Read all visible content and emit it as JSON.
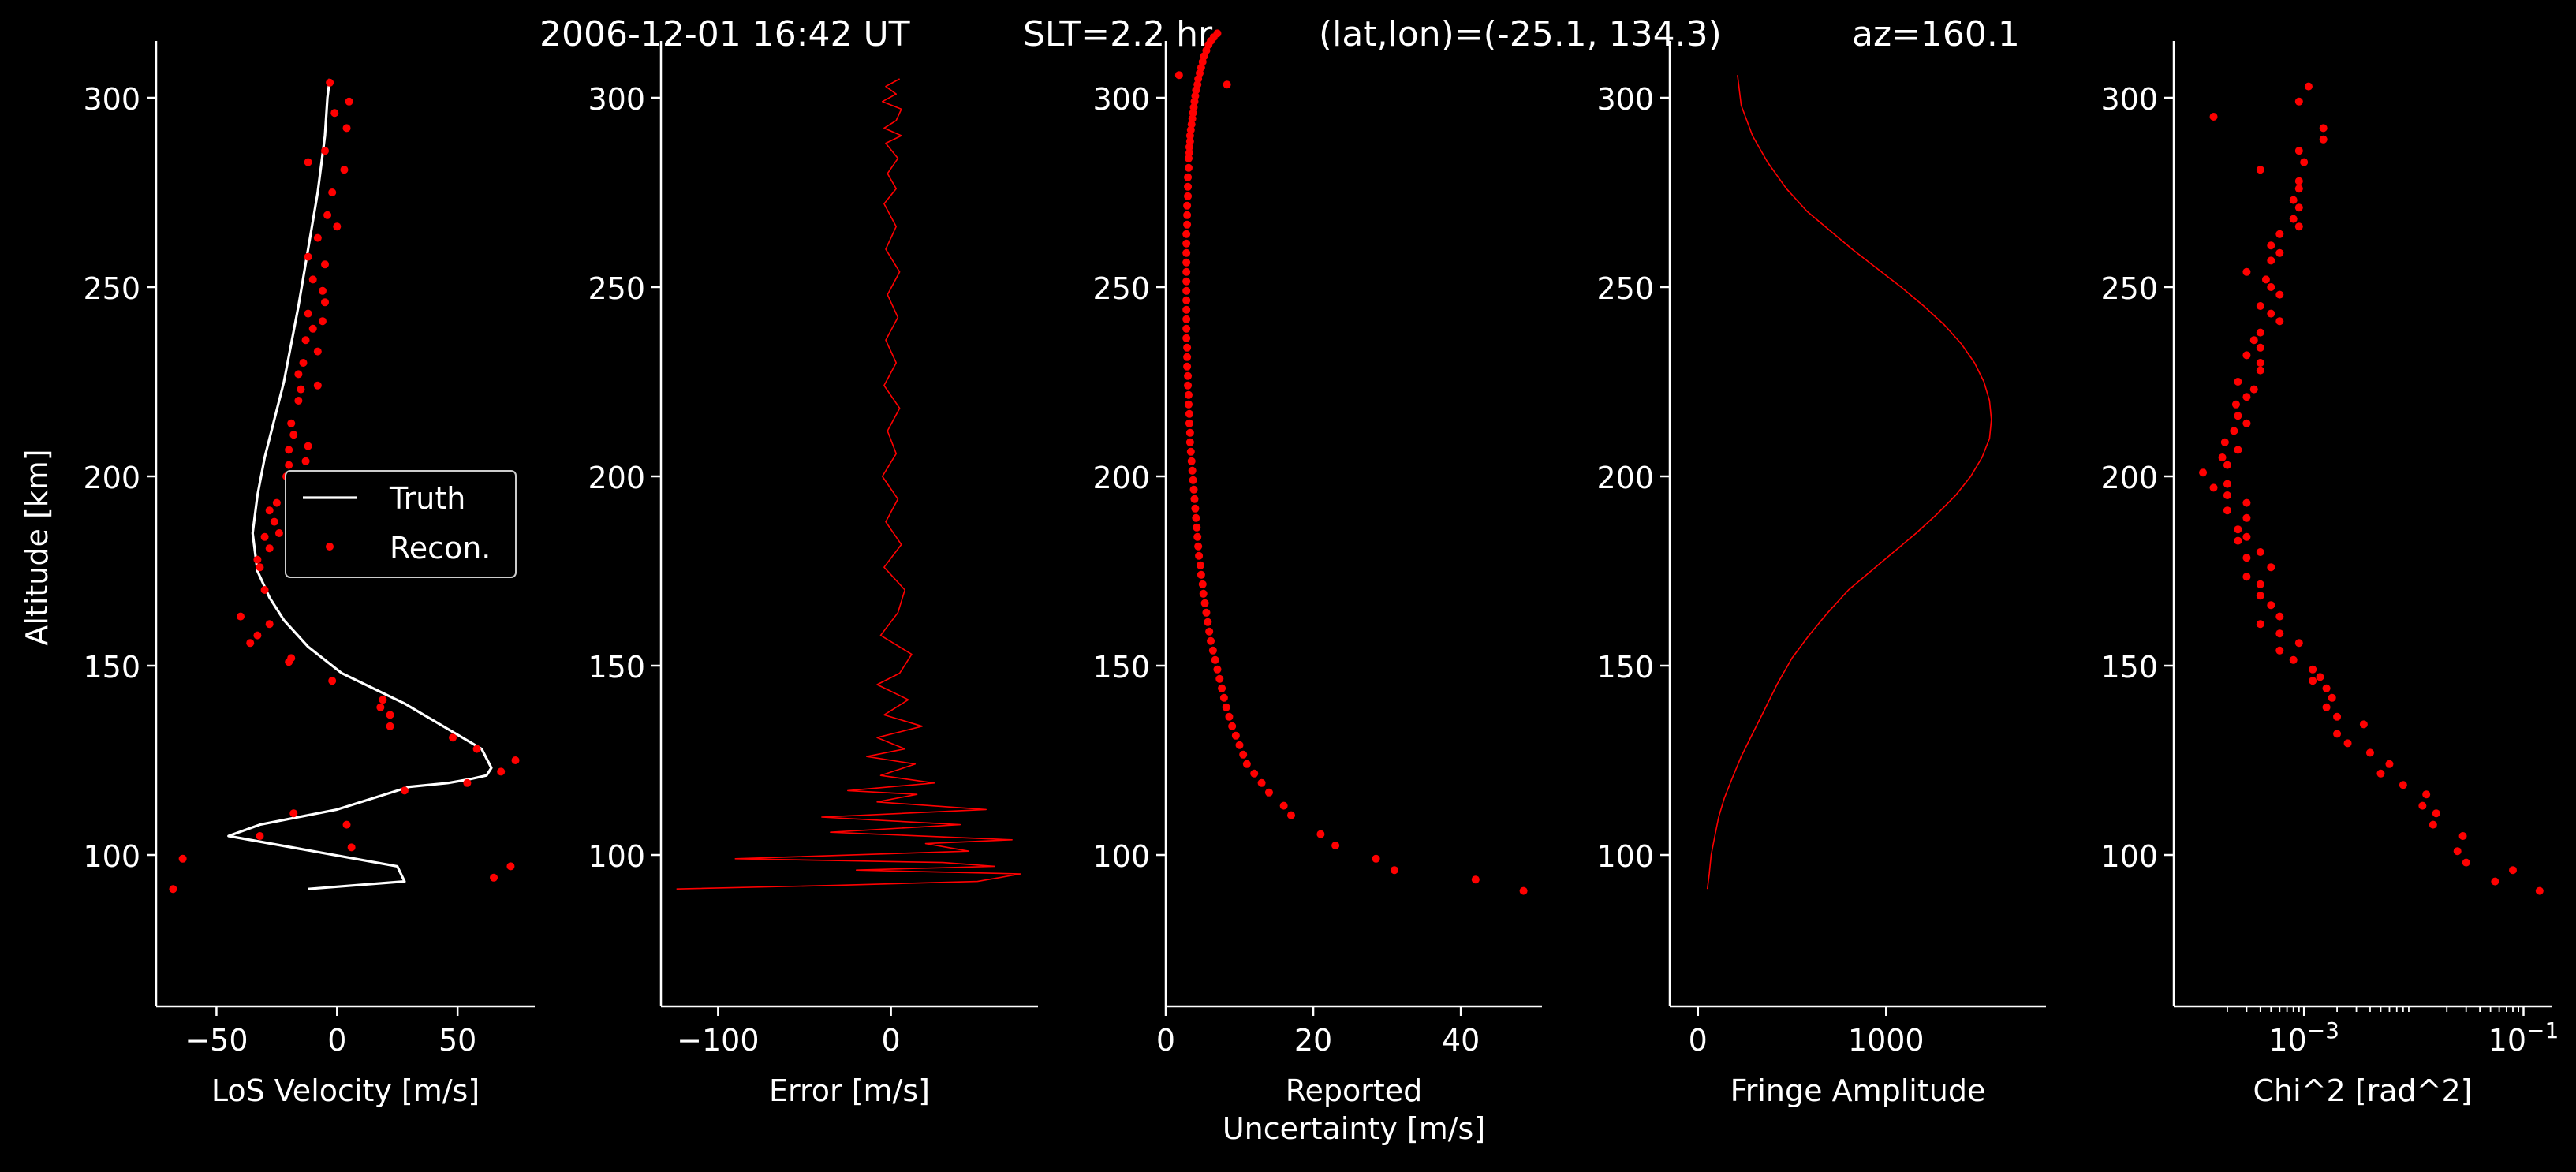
{
  "title": {
    "datetime": "2006-12-01 16:42 UT",
    "slt": "SLT=2.2 hr",
    "latlon": "(lat,lon)=(-25.1, 134.3)",
    "az": "az=160.1"
  },
  "colors": {
    "background": "#000000",
    "axes": "#ffffff",
    "truth": "#ffffff",
    "data": "#ff0000"
  },
  "chart_data": [
    {
      "type": "line",
      "xlabel": "LoS Velocity [m/s]",
      "ylabel": "Altitude [km]",
      "xlim": [
        -75,
        82
      ],
      "ylim": [
        60,
        315
      ],
      "xticks": [
        -50,
        0,
        50
      ],
      "xticklabels": [
        "−50",
        "0",
        "50"
      ],
      "yticks": [
        100,
        150,
        200,
        250,
        300
      ],
      "yticklabels": [
        "100",
        "150",
        "200",
        "250",
        "300"
      ],
      "legend": {
        "position": "center-right",
        "entries": [
          "Truth",
          "Recon."
        ]
      },
      "series": [
        {
          "name": "Truth",
          "style": "line",
          "x": [
            -12,
            28,
            25,
            -45,
            -32,
            0,
            5,
            30,
            46,
            55,
            62,
            64,
            60,
            44,
            28,
            15,
            2,
            -12,
            -22,
            -28,
            -33,
            -35,
            -33,
            -30,
            -22,
            -16,
            -12,
            -8,
            -5,
            -4,
            -3
          ],
          "y": [
            91,
            93,
            97,
            105,
            108,
            112,
            113,
            118,
            119,
            120,
            121,
            123,
            128,
            134,
            140,
            144,
            148,
            155,
            162,
            168,
            175,
            185,
            195,
            205,
            225,
            245,
            260,
            275,
            290,
            300,
            305
          ]
        },
        {
          "name": "Recon.",
          "style": "points",
          "x": [
            -68,
            65,
            72,
            -64,
            6,
            -32,
            4,
            -18,
            28,
            54,
            68,
            74,
            58,
            48,
            22,
            22,
            18,
            19,
            -2,
            -20,
            -19,
            -36,
            -33,
            -28,
            -40,
            -30,
            -32,
            -33,
            -28,
            -30,
            -24,
            -26,
            -18,
            -28,
            -25,
            -15,
            -21,
            -20,
            -13,
            -20,
            -12,
            -18,
            -19,
            -16,
            -15,
            -8,
            -16,
            -14,
            -8,
            -13,
            -10,
            -6,
            -12,
            -5,
            -6,
            -10,
            -5,
            -12,
            -8,
            0,
            -4,
            -2,
            3,
            -12,
            -5,
            4,
            -1,
            5,
            -3
          ],
          "y": [
            91,
            94,
            97,
            99,
            102,
            105,
            108,
            111,
            117,
            119,
            122,
            125,
            128,
            131,
            134,
            137,
            139,
            141,
            146,
            151,
            152,
            156,
            158,
            161,
            163,
            170,
            176,
            178,
            181,
            184,
            185,
            188,
            190,
            191,
            193,
            197,
            200,
            203,
            204,
            207,
            208,
            211,
            214,
            220,
            223,
            224,
            227,
            230,
            233,
            236,
            239,
            241,
            243,
            246,
            249,
            252,
            256,
            258,
            263,
            266,
            269,
            275,
            281,
            283,
            286,
            292,
            296,
            299,
            304
          ]
        }
      ]
    },
    {
      "type": "line",
      "xlabel": "Error [m/s]",
      "xlim": [
        -133,
        85
      ],
      "ylim": [
        60,
        315
      ],
      "xticks": [
        -100,
        0
      ],
      "xticklabels": [
        "−100",
        "0"
      ],
      "yticks": [
        100,
        150,
        200,
        250,
        300
      ],
      "yticklabels": [
        "100",
        "150",
        "200",
        "250",
        "300"
      ],
      "series": [
        {
          "style": "line",
          "x": [
            -124,
            -30,
            50,
            75,
            -20,
            60,
            30,
            -90,
            45,
            20,
            70,
            -35,
            40,
            -40,
            55,
            -8,
            15,
            -25,
            25,
            -6,
            14,
            -14,
            8,
            -8,
            18,
            -4,
            10,
            -8,
            5,
            12,
            -6,
            4,
            8,
            -4,
            6,
            -3,
            4,
            -5,
            3,
            -2,
            5,
            -4,
            3,
            -3,
            4,
            -2,
            5,
            -3,
            3,
            -4,
            3,
            -2,
            4,
            -3,
            6,
            -4,
            3,
            6,
            -5,
            3,
            -3,
            5
          ],
          "y": [
            91,
            92,
            93,
            95,
            96,
            97,
            98,
            99,
            101,
            103,
            104,
            106,
            108,
            110,
            112,
            114,
            116,
            117,
            119,
            121,
            124,
            126,
            128,
            131,
            134,
            137,
            141,
            145,
            148,
            153,
            158,
            164,
            170,
            176,
            182,
            188,
            194,
            200,
            206,
            212,
            218,
            224,
            230,
            236,
            242,
            248,
            254,
            260,
            266,
            272,
            276,
            280,
            284,
            288,
            290,
            292,
            294,
            297,
            299,
            301,
            303,
            305
          ]
        }
      ]
    },
    {
      "type": "scatter",
      "xlabel": "Reported\nUncertainty [m/s]",
      "xlim": [
        0,
        51
      ],
      "ylim": [
        60,
        315
      ],
      "xticks": [
        0,
        20,
        40
      ],
      "xticklabels": [
        "0",
        "20",
        "40"
      ],
      "yticks": [
        100,
        150,
        200,
        250,
        300
      ],
      "yticklabels": [
        "100",
        "150",
        "200",
        "250",
        "300"
      ],
      "series": [
        {
          "style": "points",
          "x": [
            48.5,
            42,
            31,
            28.5,
            23,
            21,
            17,
            16,
            14,
            13,
            12,
            11,
            10.5,
            10,
            9.5,
            9,
            8.6,
            8.2,
            7.9,
            7.6,
            7.3,
            7.0,
            6.7,
            6.4,
            6.1,
            5.9,
            5.7,
            5.5,
            5.3,
            5.1,
            5.0,
            4.8,
            4.7,
            4.5,
            4.4,
            4.3,
            4.2,
            4.1,
            4.0,
            3.9,
            3.8,
            3.7,
            3.6,
            3.5,
            3.4,
            3.3,
            3.3,
            3.2,
            3.2,
            3.1,
            3.1,
            3.0,
            3.0,
            2.9,
            2.9,
            2.9,
            2.8,
            2.8,
            2.8,
            2.8,
            2.8,
            2.8,
            2.8,
            2.8,
            2.8,
            2.8,
            2.8,
            2.8,
            2.9,
            2.9,
            2.9,
            3.0,
            3.0,
            3.0,
            3.1,
            3.1,
            3.2,
            3.2,
            3.3,
            3.3,
            3.4,
            3.5,
            3.6,
            3.7,
            3.8,
            3.9,
            4.0,
            4.1,
            4.3,
            4.4,
            4.6,
            4.8,
            5.0,
            5.2,
            5.5,
            5.8,
            6.1,
            6.5,
            7.0,
            8.3,
            1.8
          ],
          "y": [
            90.5,
            93.5,
            96,
            99,
            102.5,
            105.5,
            110.5,
            113,
            116.5,
            119,
            121.5,
            124,
            126.5,
            129,
            131.5,
            134,
            136.5,
            139,
            141.5,
            144,
            146.5,
            149,
            151.5,
            154,
            156.5,
            159,
            161.5,
            164,
            166.5,
            169,
            171.5,
            174,
            176.5,
            179,
            181.5,
            184,
            186.5,
            189,
            191.5,
            194,
            196.5,
            199,
            201.5,
            204,
            206.5,
            209,
            211.5,
            214,
            216.5,
            219,
            221.5,
            224,
            226.5,
            229,
            231.5,
            234,
            236.5,
            239,
            241.5,
            244,
            246.5,
            249,
            251.5,
            254,
            256.5,
            259,
            261.5,
            264,
            266.5,
            269,
            271.5,
            274,
            276.5,
            279,
            281.5,
            284,
            285.5,
            287,
            288.5,
            290,
            291.5,
            293,
            294.5,
            296,
            297.5,
            299,
            300.5,
            302,
            303.5,
            305,
            306.5,
            308,
            309.5,
            311,
            312.5,
            314,
            315,
            316,
            317,
            303.5,
            306
          ]
        }
      ]
    },
    {
      "type": "line",
      "xlabel": "Fringe Amplitude",
      "xlim": [
        -150,
        1850
      ],
      "ylim": [
        60,
        315
      ],
      "xticks": [
        0,
        1000
      ],
      "xticklabels": [
        "0",
        "1000"
      ],
      "yticks": [
        100,
        150,
        200,
        250,
        300
      ],
      "yticklabels": [
        "100",
        "150",
        "200",
        "250",
        "300"
      ],
      "series": [
        {
          "style": "line",
          "x": [
            50,
            60,
            70,
            90,
            110,
            140,
            180,
            230,
            290,
            350,
            420,
            500,
            590,
            690,
            800,
            920,
            1040,
            1160,
            1270,
            1370,
            1450,
            1510,
            1550,
            1560,
            1550,
            1520,
            1470,
            1400,
            1310,
            1200,
            1080,
            950,
            820,
            700,
            580,
            470,
            370,
            290,
            230,
            210
          ],
          "y": [
            91,
            95,
            100,
            105,
            110,
            115,
            120,
            126,
            132,
            138,
            145,
            152,
            158,
            164,
            170,
            175,
            180,
            185,
            190,
            195,
            200,
            205,
            210,
            215,
            220,
            225,
            230,
            235,
            240,
            245,
            250,
            255,
            260,
            265,
            270,
            276,
            283,
            290,
            298,
            306
          ]
        }
      ]
    },
    {
      "type": "scatter",
      "xlabel": "Chi^2 [rad^2]",
      "xscale": "log",
      "xlim": [
        6.5e-05,
        0.18
      ],
      "ylim": [
        60,
        315
      ],
      "xticks": [
        0.001,
        0.1
      ],
      "xticklabels": [
        "10−3",
        "10−1"
      ],
      "yticks": [
        100,
        150,
        200,
        250,
        300
      ],
      "yticklabels": [
        "100",
        "150",
        "200",
        "250",
        "300"
      ],
      "series": [
        {
          "style": "points",
          "x": [
            0.14,
            0.055,
            0.08,
            0.03,
            0.025,
            0.028,
            0.015,
            0.016,
            0.012,
            0.013,
            0.008,
            0.005,
            0.006,
            0.004,
            0.0025,
            0.002,
            0.0035,
            0.002,
            0.0016,
            0.0018,
            0.0016,
            0.0012,
            0.0014,
            0.0012,
            0.0008,
            0.0006,
            0.0009,
            0.0006,
            0.0004,
            0.0006,
            0.0005,
            0.0004,
            0.0004,
            0.0003,
            0.0005,
            0.0003,
            0.0004,
            0.00025,
            0.0003,
            0.00025,
            0.0003,
            0.0002,
            0.0003,
            0.0002,
            0.00015,
            0.0002,
            0.00012,
            0.0002,
            0.00018,
            0.00025,
            0.00019,
            0.00023,
            0.0003,
            0.00025,
            0.00024,
            0.0003,
            0.00035,
            0.00025,
            0.0004,
            0.0004,
            0.0003,
            0.0004,
            0.00035,
            0.0004,
            0.0006,
            0.0005,
            0.0004,
            0.0006,
            0.0005,
            0.00045,
            0.0003,
            0.0005,
            0.0006,
            0.0005,
            0.0006,
            0.0009,
            0.0008,
            0.0009,
            0.0008,
            0.0009,
            0.0009,
            0.0004,
            0.001,
            0.0009,
            0.0015,
            0.0015,
            0.00015,
            0.0009,
            0.0011
          ],
          "y": [
            90.5,
            93,
            96,
            98,
            101,
            105,
            108,
            111,
            113,
            116,
            118.5,
            121.5,
            124,
            127,
            129.5,
            132,
            134.5,
            136.5,
            139,
            141.5,
            144,
            146,
            147,
            149,
            151.5,
            154,
            156,
            158.5,
            161,
            163,
            166,
            168.5,
            171.5,
            173.5,
            176,
            178.5,
            180,
            183,
            184,
            186,
            189,
            191,
            193,
            195,
            197,
            198,
            201,
            203,
            205,
            207,
            209,
            212,
            214,
            216,
            219,
            221,
            223,
            225,
            228,
            230,
            232,
            234,
            236,
            238,
            241,
            243,
            245,
            248,
            250,
            252,
            254,
            257,
            259,
            261,
            264,
            266,
            268,
            271,
            273,
            276,
            278,
            281,
            283,
            286,
            289,
            292,
            295,
            299,
            303
          ]
        }
      ]
    }
  ]
}
